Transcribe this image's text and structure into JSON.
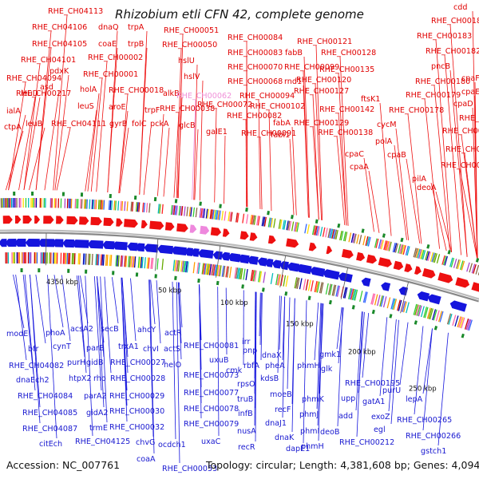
{
  "title": "Rhizobium etli CFN 42, complete genome",
  "footer": {
    "accession": "Accession: NC_007761",
    "summary": "Topology: circular; Length: 4,381,608 bp; Genes: 4,094"
  },
  "colors": {
    "forward": "#ee1010",
    "reverse": "#1515dd",
    "rna": "#ee88dd",
    "backbone": "#888888",
    "marker": "#1a8a2a"
  },
  "scale_labels": [
    "4350 kbp",
    "50 kbp",
    "100 kbp",
    "150 kbp",
    "200 kbp",
    "250 kbp"
  ],
  "top_labels": [
    "RHE_CH04113",
    "dnaQ",
    "trpA",
    "RHE_CH00051",
    "RHE_CH00084",
    "RHE_CH00121",
    "cdd",
    "RHE_CH00186",
    "RHE_CH04106",
    "coaE",
    "trpB",
    "RHE_CH00050",
    "RHE_CH00083",
    "fabB",
    "RHE_CH00128",
    "RHE_CH00183",
    "RHE_CH04105",
    "RHE_CH00002",
    "hslU",
    "RHE_CH00070",
    "RHE_CH00099",
    "RHE_CH00182",
    "RHE_CH04101",
    "pdxK",
    "RHE_CH00001",
    "hslV",
    "RHE_CH00068",
    "rnd1",
    "RHE_CH00135",
    "pncB",
    "RHE_CH04094",
    "leuD",
    "asd",
    "holA",
    "RHE_CH00018",
    "alkB",
    "RHE_CH00062",
    "RHE_CH00094",
    "RHE_CH00120",
    "RHE_CH00180",
    "cpaF",
    "ialA",
    "leuB",
    "leuS",
    "aroE",
    "trpF",
    "RHE_CH00038",
    "RHE_CH00072",
    "RHE_CH00102",
    "RHE_CH00127",
    "ftsK1",
    "RHE_CH00179",
    "cpaE",
    "ctpA",
    "RHE_CH04111",
    "gyrB",
    "folC",
    "pckA",
    "glcB",
    "galE1",
    "RHE_CH00082",
    "fabA",
    "RHE_CH00129",
    "RHE_CH00142",
    "RHE_CH00178",
    "cpaD",
    "RHE_CH00091",
    "fabI1",
    "RHE_CH00138",
    "cycM",
    "RHE_CH00177",
    "cpaC",
    "polA",
    "RHE_CH00176",
    "cpaB",
    "RHE_CH00175",
    "cpaA",
    "RHE_CH00168",
    "pilA",
    "deoA",
    "RHE_CH00217"
  ],
  "bottom_labels": [
    "modE",
    "phoA",
    "acsA2",
    "secB",
    "ahcY",
    "actR",
    "RHE_CH00081",
    "irr",
    "bfr",
    "cynT",
    "parB",
    "trxA1",
    "chvI",
    "actS",
    "pnp",
    "dnaX",
    "gmk1",
    "glk",
    "RHE_CH04082",
    "purH",
    "gidB",
    "RHE_CH00027",
    "helO",
    "uxuB",
    "rbfA",
    "pheA",
    "phmH",
    "dnaEch2",
    "htpX2",
    "rho",
    "RHE_CH00028",
    "RHE_CH00073",
    "cmk",
    "kdsB",
    "RHE_CH00195",
    "purU",
    "RHE_CH04084",
    "parA2",
    "RHE_CH00029",
    "RHE_CH00077",
    "rpsO",
    "moeB",
    "phmK",
    "upp",
    "gatA1",
    "RHE_CH04085",
    "gidA2",
    "RHE_CH00030",
    "RHE_CH00078",
    "truB",
    "recF",
    "phmJ",
    "add",
    "exoZ",
    "lepA",
    "RHE_CH04087",
    "trmE",
    "RHE_CH00032",
    "RHE_CH00079",
    "infB",
    "dnaJ1",
    "phmI",
    "deoB",
    "egl",
    "RHE_CH00265",
    "citEch",
    "RHE_CH04125",
    "chvG",
    "ocdch1",
    "uxaC",
    "nusA",
    "dnaK",
    "phmH",
    "RHE_CH00212",
    "RHE_CH00266",
    "coaA",
    "RHE_CH00053",
    "recR",
    "dapE1",
    "gstch1"
  ]
}
